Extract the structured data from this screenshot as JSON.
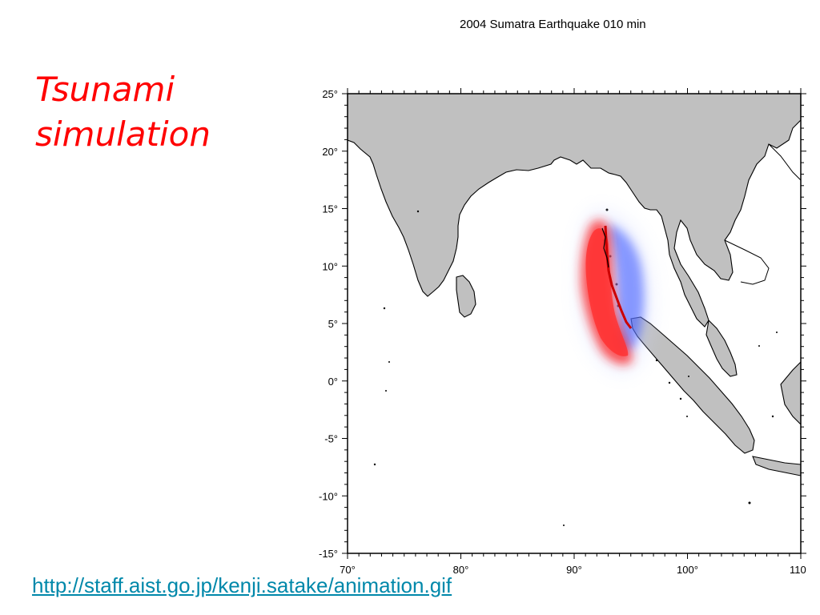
{
  "slide": {
    "title_lines": [
      "Tsunami",
      "simulation"
    ],
    "source_link": "http://staff.aist.go.jp/kenji.satake/animation.gif"
  },
  "figure": {
    "title": "2004 Sumatra Earthquake  010 min",
    "lon_range": [
      70,
      110
    ],
    "lat_range": [
      -15,
      25
    ],
    "y_ticks": [
      "25°",
      "20°",
      "15°",
      "10°",
      "5°",
      "0°",
      "-5°",
      "-10°",
      "-15°"
    ],
    "x_ticks": [
      "70°",
      "80°",
      "90°",
      "100°",
      "110"
    ],
    "colors": {
      "land": "#c0c0c0",
      "coast": "#000000",
      "wave_up": "#ff2020",
      "wave_down": "#3050ff",
      "fault": "#cc0000"
    }
  }
}
